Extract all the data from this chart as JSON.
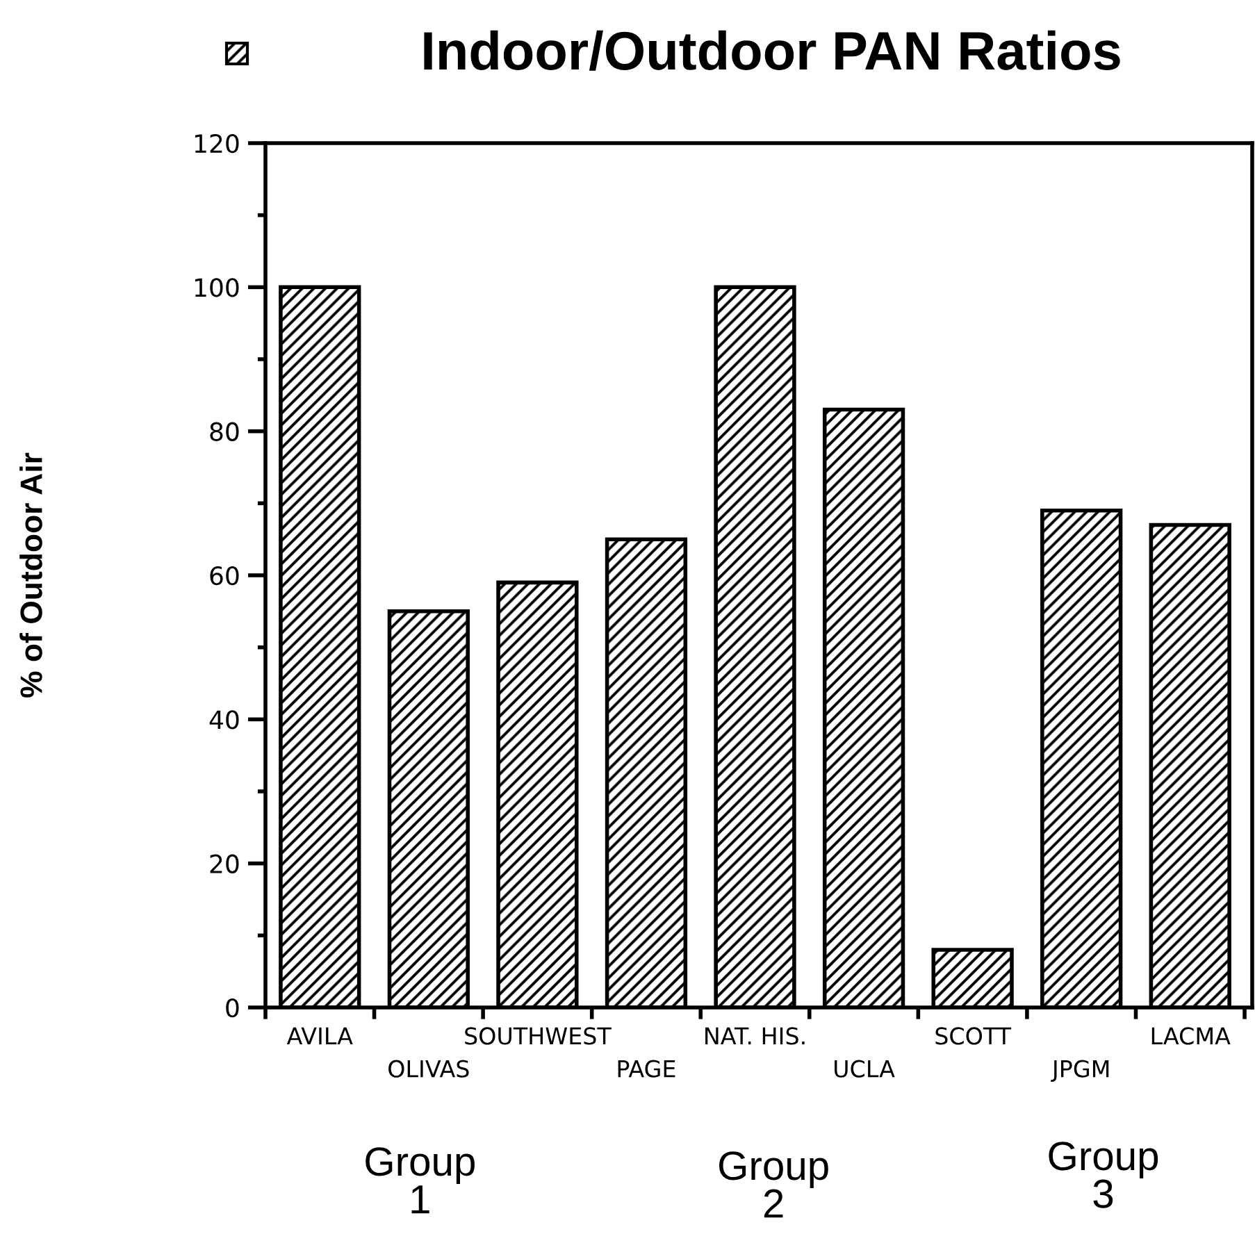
{
  "chart_data": {
    "type": "bar",
    "title": "Indoor/Outdoor PAN Ratios",
    "ylabel": "% of Outdoor Air",
    "categories": [
      "AVILA",
      "OLIVAS",
      "SOUTHWEST",
      "PAGE",
      "NAT. HIS.",
      "UCLA",
      "SCOTT",
      "JPGM",
      "LACMA"
    ],
    "values": [
      100,
      55,
      59,
      65,
      100,
      83,
      8,
      69,
      67
    ],
    "color": "#000000",
    "ylim": [
      0,
      120
    ],
    "yticks": [
      0,
      {
        "value": 10,
        "label": null
      },
      20,
      {
        "value": 30,
        "label": null
      },
      40,
      {
        "value": 50,
        "label": null
      },
      60,
      {
        "value": 70,
        "label": null
      },
      80,
      {
        "value": 90,
        "label": null
      },
      100,
      {
        "value": 110,
        "label": null
      },
      120
    ],
    "annotations": [
      "Group\n1",
      "Group\n2",
      "Group\n3"
    ]
  }
}
